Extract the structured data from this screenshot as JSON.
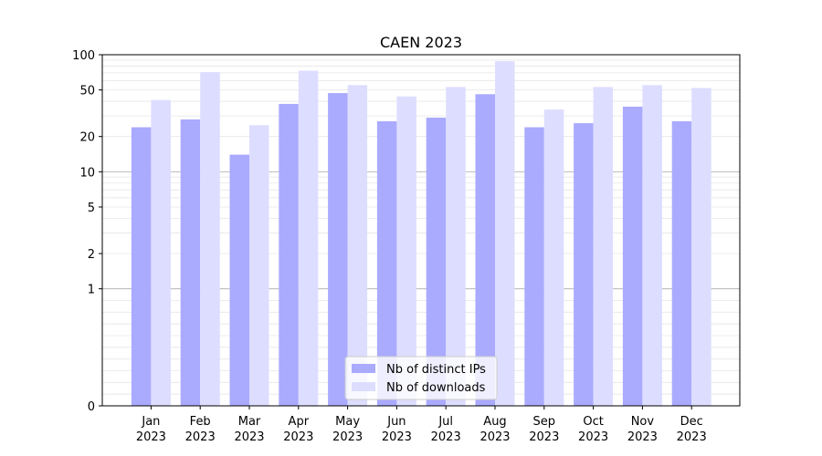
{
  "chart_data": {
    "type": "bar",
    "title": "CAEN 2023",
    "xlabel": "",
    "ylabel": "",
    "yscale": "symlog",
    "ylim": [
      0,
      100
    ],
    "yticks": [
      0,
      1,
      2,
      5,
      10,
      20,
      50,
      100
    ],
    "ytick_labels": [
      "0",
      "1",
      "2",
      "5",
      "10",
      "20",
      "50",
      "100"
    ],
    "categories": [
      {
        "month": "Jan",
        "year": "2023"
      },
      {
        "month": "Feb",
        "year": "2023"
      },
      {
        "month": "Mar",
        "year": "2023"
      },
      {
        "month": "Apr",
        "year": "2023"
      },
      {
        "month": "May",
        "year": "2023"
      },
      {
        "month": "Jun",
        "year": "2023"
      },
      {
        "month": "Jul",
        "year": "2023"
      },
      {
        "month": "Aug",
        "year": "2023"
      },
      {
        "month": "Sep",
        "year": "2023"
      },
      {
        "month": "Oct",
        "year": "2023"
      },
      {
        "month": "Nov",
        "year": "2023"
      },
      {
        "month": "Dec",
        "year": "2023"
      }
    ],
    "series": [
      {
        "name": "Nb of distinct IPs",
        "color": "#aaaaff",
        "values": [
          24,
          28,
          14,
          38,
          47,
          27,
          29,
          46,
          24,
          26,
          36,
          27
        ]
      },
      {
        "name": "Nb of downloads",
        "color": "#ddddff",
        "values": [
          41,
          71,
          25,
          73,
          55,
          44,
          53,
          88,
          34,
          53,
          55,
          52
        ]
      }
    ],
    "grid": true,
    "legend_position": "bottom-center"
  }
}
